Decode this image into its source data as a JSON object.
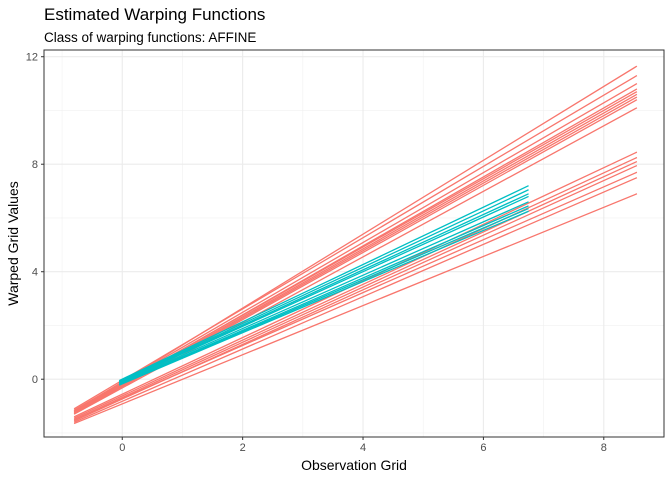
{
  "chart_data": {
    "type": "line",
    "title": "Estimated Warping Functions",
    "subtitle": "Class of warping functions: AFFINE",
    "xlabel": "Observation Grid",
    "ylabel": "Warped Grid Values",
    "xlim": [
      -1.3,
      9.0
    ],
    "ylim": [
      -2.15,
      12.25
    ],
    "x_ticks": [
      0,
      2,
      4,
      6,
      8
    ],
    "y_ticks": [
      0,
      4,
      8,
      12
    ],
    "grid": true,
    "legend": "none",
    "colors": {
      "red": "#F8766D",
      "teal": "#00BFC4"
    },
    "series": [
      {
        "color": "red",
        "x": [
          -0.8,
          8.55
        ],
        "y": [
          -1.2,
          11.65
        ]
      },
      {
        "color": "red",
        "x": [
          -0.8,
          8.55
        ],
        "y": [
          -1.1,
          11.3
        ]
      },
      {
        "color": "red",
        "x": [
          -0.8,
          8.55
        ],
        "y": [
          -1.15,
          11.0
        ]
      },
      {
        "color": "red",
        "x": [
          -0.8,
          8.55
        ],
        "y": [
          -1.2,
          10.8
        ]
      },
      {
        "color": "red",
        "x": [
          -0.8,
          8.55
        ],
        "y": [
          -1.18,
          10.7
        ]
      },
      {
        "color": "red",
        "x": [
          -0.8,
          8.55
        ],
        "y": [
          -1.22,
          10.6
        ]
      },
      {
        "color": "red",
        "x": [
          -0.8,
          8.55
        ],
        "y": [
          -1.25,
          10.5
        ]
      },
      {
        "color": "red",
        "x": [
          -0.8,
          8.55
        ],
        "y": [
          -1.28,
          10.4
        ]
      },
      {
        "color": "red",
        "x": [
          -0.8,
          8.55
        ],
        "y": [
          -1.3,
          10.1
        ]
      },
      {
        "color": "red",
        "x": [
          -0.8,
          8.55
        ],
        "y": [
          -1.4,
          8.45
        ]
      },
      {
        "color": "red",
        "x": [
          -0.8,
          8.55
        ],
        "y": [
          -1.45,
          8.25
        ]
      },
      {
        "color": "red",
        "x": [
          -0.8,
          8.55
        ],
        "y": [
          -1.5,
          8.1
        ]
      },
      {
        "color": "red",
        "x": [
          -0.8,
          8.55
        ],
        "y": [
          -1.55,
          7.95
        ]
      },
      {
        "color": "red",
        "x": [
          -0.8,
          8.55
        ],
        "y": [
          -1.5,
          7.7
        ]
      },
      {
        "color": "red",
        "x": [
          -0.8,
          8.55
        ],
        "y": [
          -1.6,
          7.5
        ]
      },
      {
        "color": "red",
        "x": [
          -0.8,
          8.55
        ],
        "y": [
          -1.65,
          6.9
        ]
      },
      {
        "color": "teal",
        "x": [
          -0.05,
          6.75
        ],
        "y": [
          -0.05,
          7.2
        ]
      },
      {
        "color": "teal",
        "x": [
          -0.05,
          6.75
        ],
        "y": [
          -0.08,
          7.05
        ]
      },
      {
        "color": "teal",
        "x": [
          -0.05,
          6.75
        ],
        "y": [
          -0.1,
          6.9
        ]
      },
      {
        "color": "teal",
        "x": [
          -0.05,
          6.75
        ],
        "y": [
          -0.12,
          6.8
        ]
      },
      {
        "color": "teal",
        "x": [
          -0.05,
          6.75
        ],
        "y": [
          -0.15,
          6.6
        ]
      },
      {
        "color": "teal",
        "x": [
          -0.05,
          6.75
        ],
        "y": [
          -0.18,
          6.45
        ]
      },
      {
        "color": "teal",
        "x": [
          -0.05,
          6.75
        ],
        "y": [
          -0.2,
          6.35
        ]
      },
      {
        "color": "teal",
        "x": [
          -0.05,
          6.75
        ],
        "y": [
          -0.22,
          6.25
        ]
      }
    ]
  }
}
